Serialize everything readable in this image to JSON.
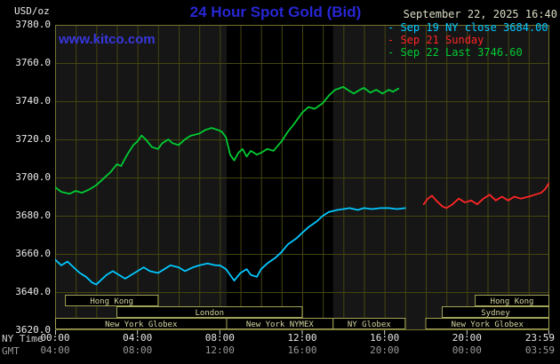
{
  "colors": {
    "page_bg": "#000000",
    "plot_bg": "#161616",
    "nymex_band": "#000000",
    "grid": "#454510",
    "plot_border": "#73732f",
    "session_border": "#a2a258",
    "session_text": "#d6d6a2",
    "axis_text": "#e6e6e6",
    "axis_text_dim": "#9a9a9a",
    "title_blue": "#2727d4",
    "link_blue": "#3737dd",
    "datetime_text": "#dcdcc6"
  },
  "header": {
    "unit_label": "USD/oz",
    "title": "24 Hour Spot Gold (Bid)",
    "datetime": "September 22, 2025 16:40",
    "legend": [
      {
        "label": "Sep 19 NY close 3684.00",
        "color": "#00c8ff"
      },
      {
        "label": "Sep 21 Sunday",
        "color": "#ff2525"
      },
      {
        "label": "Sep 22 Last 3746.60",
        "color": "#00cc33"
      }
    ]
  },
  "watermark": "www.kitco.com",
  "axes": {
    "y_ticks": [
      "3780.0",
      "3760.0",
      "3740.0",
      "3720.0",
      "3700.0",
      "3680.0",
      "3660.0",
      "3640.0",
      "3620.0"
    ],
    "x_row1_label": "NY Time",
    "x_row2_label": "GMT",
    "x_row1": [
      "00:00",
      "04:00",
      "08:00",
      "12:00",
      "16:00",
      "20:00",
      "23:59"
    ],
    "x_row2": [
      "04:00",
      "08:00",
      "12:00",
      "16:00",
      "20:00",
      "00:00",
      "03:59"
    ]
  },
  "chart_data": {
    "type": "line",
    "title": "24 Hour Spot Gold (Bid)",
    "ylabel": "USD/oz",
    "xlabel": "NY Time (hours)",
    "y_axis": {
      "range": [
        3620,
        3780
      ],
      "tick_step": 20
    },
    "x_axis": {
      "range_hours": [
        0,
        24
      ],
      "tick_hours": [
        0,
        4,
        8,
        12,
        16,
        20,
        23.983
      ]
    },
    "shaded_band_hours": [
      8.33,
      13.5
    ],
    "series": [
      {
        "id": "sep19",
        "name": "Sep 19 NY close 3684.00",
        "color": "#00c8ff",
        "close": 3684.0,
        "points": [
          [
            0,
            3657
          ],
          [
            0.3,
            3654
          ],
          [
            0.6,
            3656
          ],
          [
            0.9,
            3653
          ],
          [
            1.2,
            3650
          ],
          [
            1.5,
            3648
          ],
          [
            1.8,
            3645
          ],
          [
            2,
            3644
          ],
          [
            2.2,
            3646
          ],
          [
            2.5,
            3649
          ],
          [
            2.8,
            3651
          ],
          [
            3.1,
            3649
          ],
          [
            3.4,
            3647
          ],
          [
            3.7,
            3649
          ],
          [
            4,
            3651
          ],
          [
            4.3,
            3653
          ],
          [
            4.6,
            3651
          ],
          [
            5,
            3650
          ],
          [
            5.3,
            3652
          ],
          [
            5.6,
            3654
          ],
          [
            6,
            3653
          ],
          [
            6.3,
            3651
          ],
          [
            6.7,
            3653
          ],
          [
            7,
            3654
          ],
          [
            7.4,
            3655
          ],
          [
            7.8,
            3654
          ],
          [
            8,
            3654
          ],
          [
            8.3,
            3652
          ],
          [
            8.5,
            3649
          ],
          [
            8.7,
            3646
          ],
          [
            9,
            3650
          ],
          [
            9.3,
            3652
          ],
          [
            9.5,
            3649
          ],
          [
            9.8,
            3648
          ],
          [
            10,
            3652
          ],
          [
            10.3,
            3655
          ],
          [
            10.7,
            3658
          ],
          [
            11,
            3661
          ],
          [
            11.3,
            3665
          ],
          [
            11.7,
            3668
          ],
          [
            12,
            3671
          ],
          [
            12.3,
            3674
          ],
          [
            12.7,
            3677
          ],
          [
            13,
            3680
          ],
          [
            13.3,
            3682
          ],
          [
            13.7,
            3683
          ],
          [
            14,
            3683.5
          ],
          [
            14.3,
            3684
          ],
          [
            14.7,
            3683
          ],
          [
            15,
            3684
          ],
          [
            15.4,
            3683.5
          ],
          [
            15.8,
            3684
          ],
          [
            16.2,
            3684
          ],
          [
            16.6,
            3683.5
          ],
          [
            17,
            3684
          ]
        ]
      },
      {
        "id": "sep21",
        "name": "Sep 21 Sunday",
        "color": "#ff2525",
        "points": [
          [
            17.9,
            3686
          ],
          [
            18.1,
            3689
          ],
          [
            18.3,
            3690.5
          ],
          [
            18.5,
            3688
          ],
          [
            18.8,
            3685
          ],
          [
            19,
            3684
          ],
          [
            19.3,
            3686
          ],
          [
            19.6,
            3689
          ],
          [
            19.9,
            3687
          ],
          [
            20.2,
            3688
          ],
          [
            20.5,
            3686
          ],
          [
            20.8,
            3689
          ],
          [
            21.1,
            3691
          ],
          [
            21.4,
            3688
          ],
          [
            21.7,
            3690
          ],
          [
            22,
            3688
          ],
          [
            22.3,
            3690
          ],
          [
            22.6,
            3689
          ],
          [
            23,
            3690
          ],
          [
            23.3,
            3691
          ],
          [
            23.6,
            3692
          ],
          [
            23.8,
            3694
          ],
          [
            23.98,
            3697
          ]
        ]
      },
      {
        "id": "sep22",
        "name": "Sep 22 Last 3746.60",
        "color": "#00cc33",
        "last": 3746.6,
        "points": [
          [
            0,
            3695
          ],
          [
            0.3,
            3692.5
          ],
          [
            0.7,
            3691.5
          ],
          [
            1,
            3693
          ],
          [
            1.3,
            3692
          ],
          [
            1.7,
            3694
          ],
          [
            2,
            3696
          ],
          [
            2.3,
            3699
          ],
          [
            2.7,
            3703
          ],
          [
            3,
            3707
          ],
          [
            3.2,
            3706
          ],
          [
            3.5,
            3712
          ],
          [
            3.8,
            3717
          ],
          [
            4,
            3719
          ],
          [
            4.2,
            3722
          ],
          [
            4.4,
            3720
          ],
          [
            4.7,
            3716
          ],
          [
            5,
            3715
          ],
          [
            5.2,
            3718
          ],
          [
            5.5,
            3720
          ],
          [
            5.7,
            3718
          ],
          [
            6,
            3717
          ],
          [
            6.3,
            3720
          ],
          [
            6.6,
            3722
          ],
          [
            7,
            3723
          ],
          [
            7.3,
            3725
          ],
          [
            7.6,
            3726
          ],
          [
            7.9,
            3725
          ],
          [
            8.1,
            3724
          ],
          [
            8.3,
            3721
          ],
          [
            8.5,
            3712
          ],
          [
            8.7,
            3709
          ],
          [
            8.9,
            3713
          ],
          [
            9.1,
            3715
          ],
          [
            9.3,
            3711
          ],
          [
            9.5,
            3714
          ],
          [
            9.8,
            3712
          ],
          [
            10,
            3713
          ],
          [
            10.3,
            3715
          ],
          [
            10.6,
            3714
          ],
          [
            11,
            3719
          ],
          [
            11.3,
            3724
          ],
          [
            11.6,
            3728
          ],
          [
            12,
            3734
          ],
          [
            12.3,
            3737
          ],
          [
            12.6,
            3736
          ],
          [
            13,
            3739
          ],
          [
            13.3,
            3743
          ],
          [
            13.6,
            3746
          ],
          [
            14,
            3747.5
          ],
          [
            14.2,
            3746
          ],
          [
            14.5,
            3744
          ],
          [
            14.8,
            3746
          ],
          [
            15,
            3747
          ],
          [
            15.3,
            3744.5
          ],
          [
            15.6,
            3746
          ],
          [
            15.9,
            3744
          ],
          [
            16.2,
            3746
          ],
          [
            16.4,
            3745
          ],
          [
            16.67,
            3746.6
          ]
        ]
      }
    ],
    "sessions": [
      {
        "row": 0,
        "label": "Hong Kong",
        "start": 0.5,
        "end": 5.0
      },
      {
        "row": 0,
        "label": "Hong Kong",
        "start": 20.4,
        "end": 24
      },
      {
        "row": 1,
        "label": "London",
        "start": 3.0,
        "end": 12.0
      },
      {
        "row": 1,
        "label": "Sydney",
        "start": 18.8,
        "end": 24
      },
      {
        "row": 2,
        "label": "New York Globex",
        "start": 0,
        "end": 8.33
      },
      {
        "row": 2,
        "label": "New York NYMEX",
        "start": 8.33,
        "end": 13.5
      },
      {
        "row": 2,
        "label": "NY Globex",
        "start": 13.5,
        "end": 17.0
      },
      {
        "row": 2,
        "label": "New York Globex",
        "start": 18.0,
        "end": 24
      }
    ]
  }
}
